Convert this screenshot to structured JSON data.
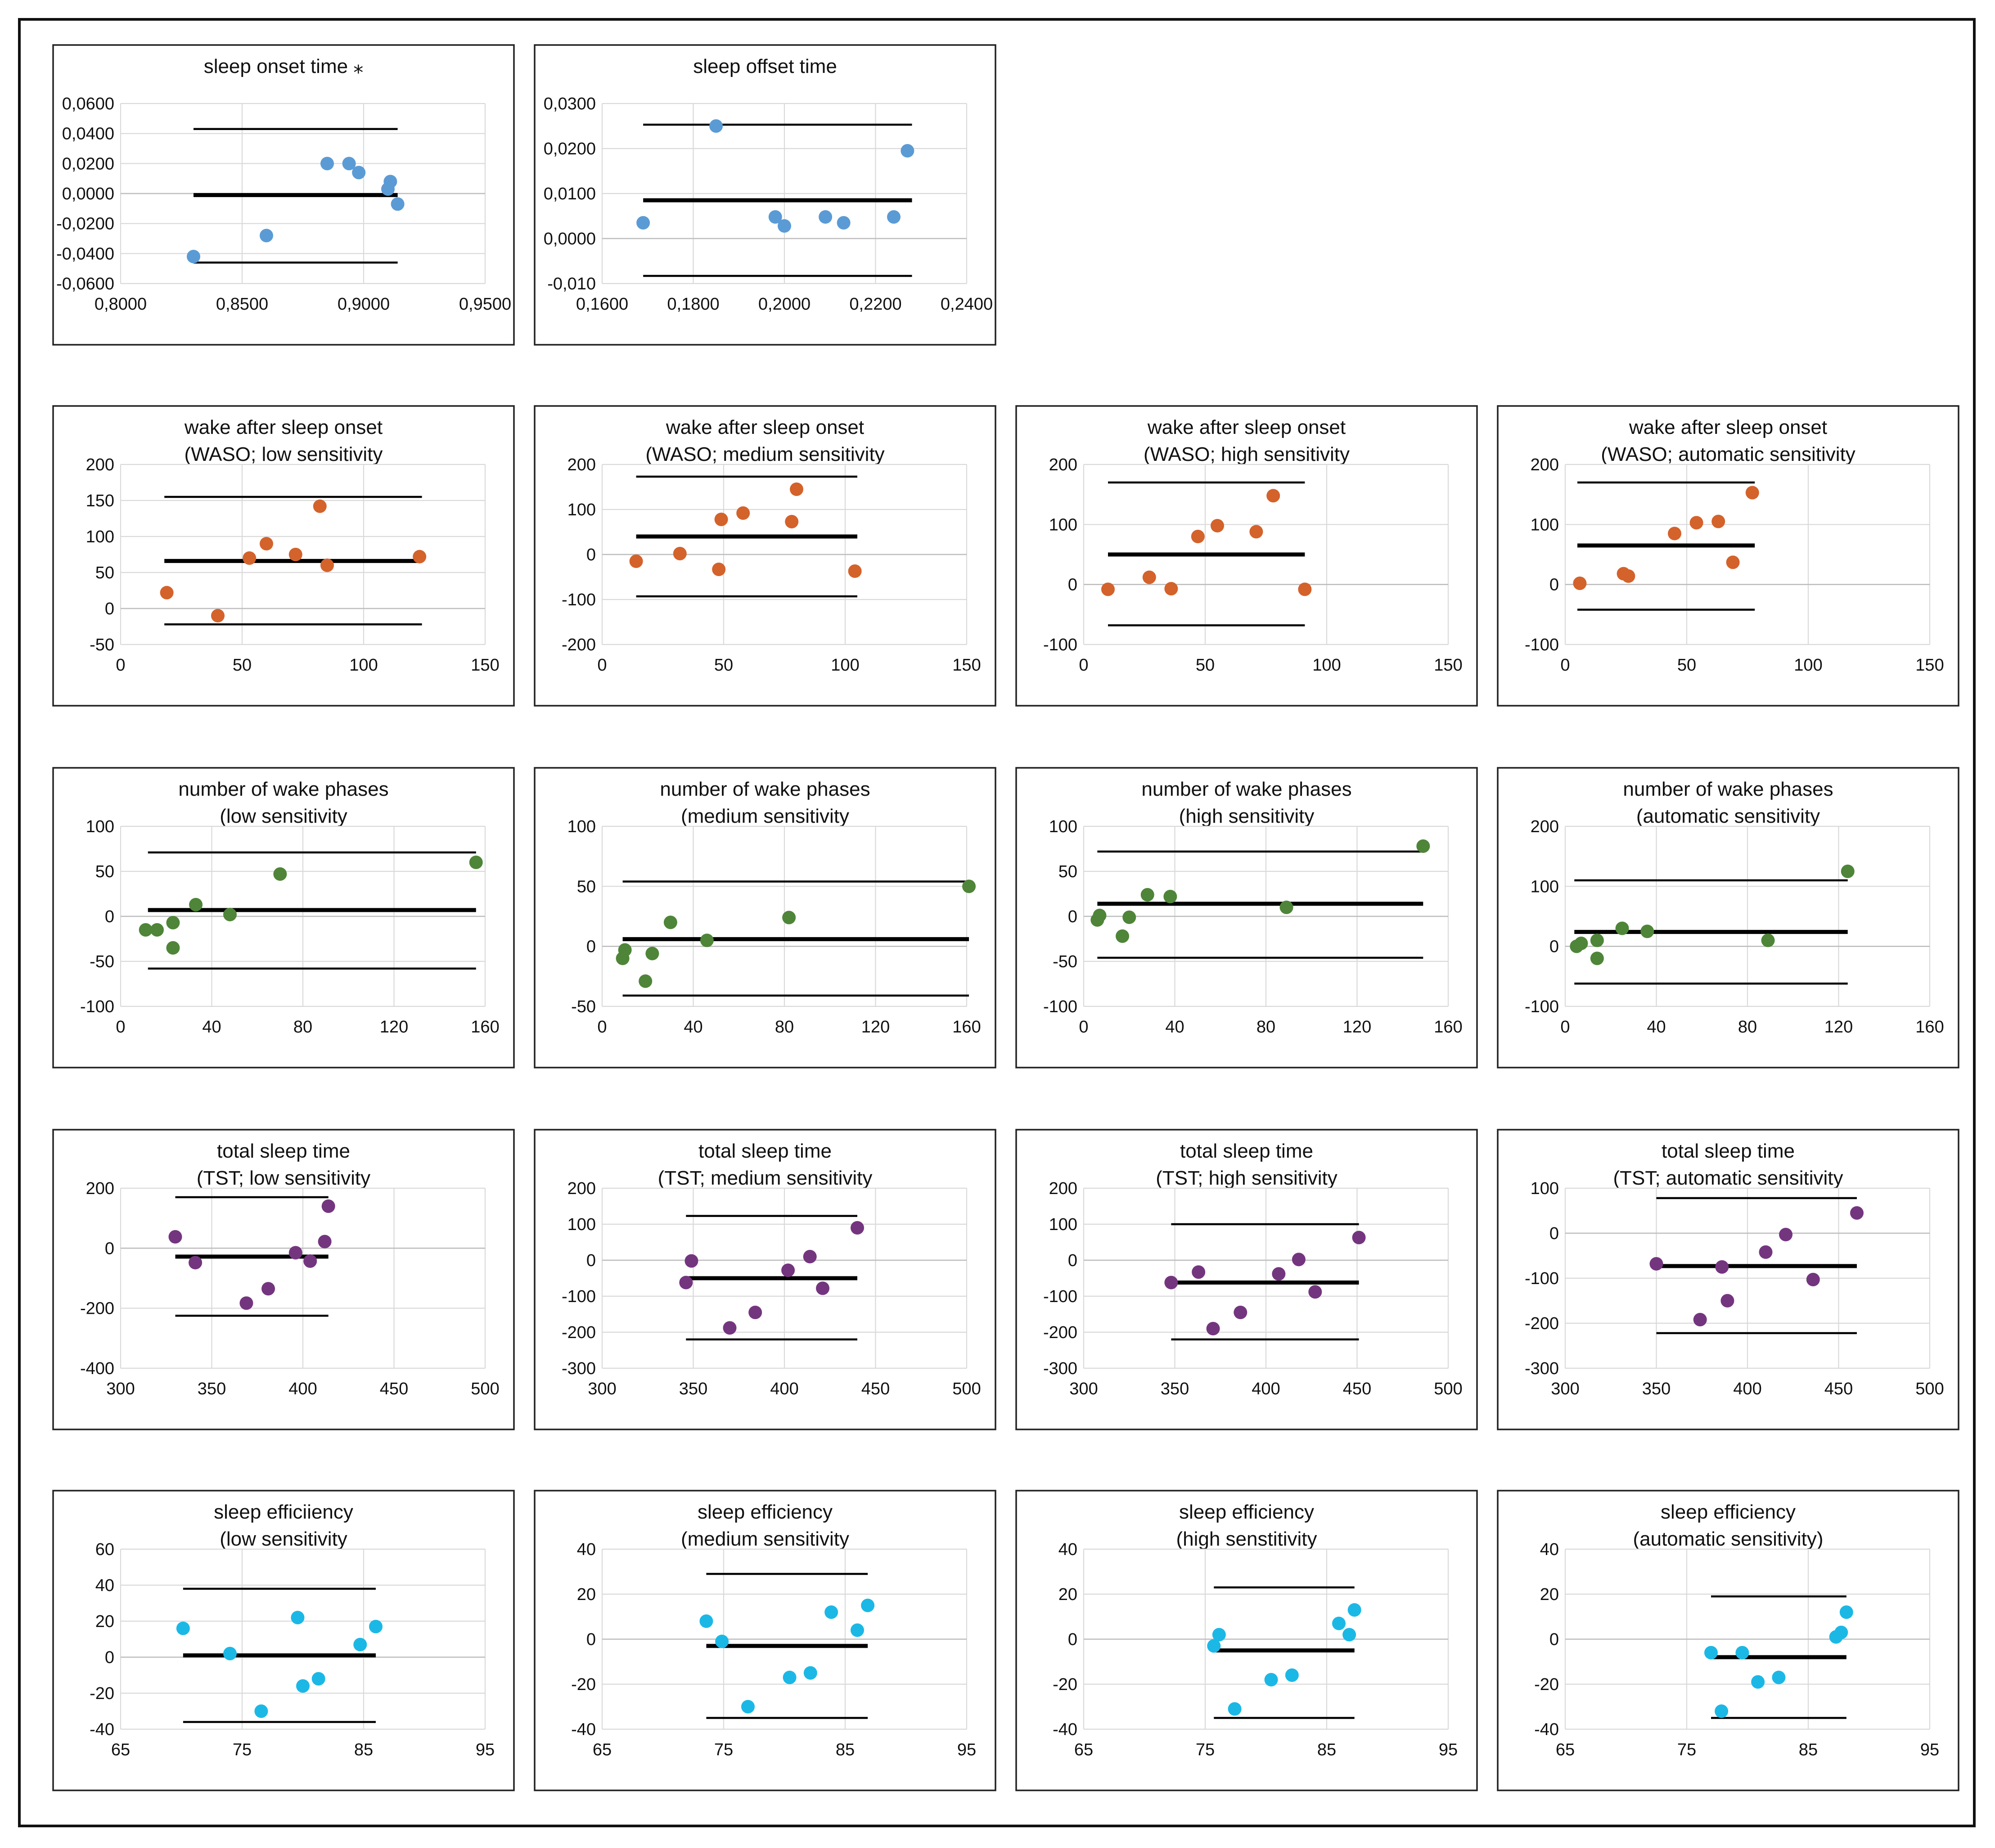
{
  "colors": {
    "blue": "#5b9bd5",
    "orange": "#d4622b",
    "green": "#4e8538",
    "purple": "#74357f",
    "cyan": "#1bb8e6"
  },
  "chart_data": [
    {
      "id": "onset",
      "type": "scatter",
      "title": [
        "sleep onset time ⁎"
      ],
      "color": "blue",
      "xlim": [
        0.8,
        0.95
      ],
      "ylim": [
        -0.06,
        0.06
      ],
      "xticks": [
        "0,8000",
        "0,8500",
        "0,9000",
        "0,9500"
      ],
      "yticks": [
        "-0,0600",
        "-0,0400",
        "-0,0200",
        "0,0000",
        "0,0200",
        "0,0400",
        "0,0600"
      ],
      "points": [
        [
          0.83,
          -0.042
        ],
        [
          0.86,
          -0.028
        ],
        [
          0.885,
          0.02
        ],
        [
          0.894,
          0.02
        ],
        [
          0.898,
          0.014
        ],
        [
          0.91,
          0.003
        ],
        [
          0.911,
          0.008
        ],
        [
          0.914,
          -0.007
        ]
      ],
      "mean": -0.001,
      "loa": [
        0.043,
        -0.046
      ],
      "line_x": [
        0.83,
        0.914
      ]
    },
    {
      "id": "offset",
      "type": "scatter",
      "title": [
        "sleep offset time"
      ],
      "color": "blue",
      "xlim": [
        0.16,
        0.24
      ],
      "ylim": [
        -0.01,
        0.03
      ],
      "xticks": [
        "0,1600",
        "0,1800",
        "0,2000",
        "0,2200",
        "0,2400"
      ],
      "yticks": [
        "-0,010",
        "0,0000",
        "0,0100",
        "0,0200",
        "0,0300"
      ],
      "points": [
        [
          0.169,
          0.0035
        ],
        [
          0.185,
          0.025
        ],
        [
          0.198,
          0.0048
        ],
        [
          0.2,
          0.0028
        ],
        [
          0.209,
          0.0048
        ],
        [
          0.213,
          0.0035
        ],
        [
          0.224,
          0.0048
        ],
        [
          0.227,
          0.0195
        ]
      ],
      "mean": 0.0085,
      "loa": [
        0.0253,
        -0.0083
      ],
      "line_x": [
        0.169,
        0.228
      ]
    },
    {
      "id": "waso-low",
      "type": "scatter",
      "title": [
        "wake after sleep onset",
        "(WASO; low sensitivity"
      ],
      "color": "orange",
      "xlim": [
        0,
        150
      ],
      "ylim": [
        -50,
        200
      ],
      "xticks": [
        "0",
        "50",
        "100",
        "150"
      ],
      "yticks": [
        "-50",
        "0",
        "50",
        "100",
        "150",
        "200"
      ],
      "points": [
        [
          19,
          22
        ],
        [
          40,
          -10
        ],
        [
          53,
          70
        ],
        [
          60,
          90
        ],
        [
          72,
          75
        ],
        [
          82,
          142
        ],
        [
          85,
          60
        ],
        [
          123,
          72
        ]
      ],
      "mean": 66,
      "loa": [
        155,
        -22
      ],
      "line_x": [
        18,
        124
      ]
    },
    {
      "id": "waso-medium",
      "type": "scatter",
      "title": [
        "wake after sleep onset",
        "(WASO; medium sensitivity"
      ],
      "color": "orange",
      "xlim": [
        0,
        150
      ],
      "ylim": [
        -200,
        200
      ],
      "xticks": [
        "0",
        "50",
        "100",
        "150"
      ],
      "yticks": [
        "-200",
        "-100",
        "0",
        "100",
        "200"
      ],
      "points": [
        [
          14,
          -15
        ],
        [
          32,
          2
        ],
        [
          48,
          -33
        ],
        [
          49,
          78
        ],
        [
          58,
          92
        ],
        [
          78,
          73
        ],
        [
          80,
          145
        ],
        [
          104,
          -37
        ]
      ],
      "mean": 40,
      "loa": [
        173,
        -93
      ],
      "line_x": [
        14,
        105
      ]
    },
    {
      "id": "waso-high",
      "type": "scatter",
      "title": [
        "wake after sleep onset",
        "(WASO; high sensitivity"
      ],
      "color": "orange",
      "xlim": [
        0,
        150
      ],
      "ylim": [
        -100,
        200
      ],
      "xticks": [
        "0",
        "50",
        "100",
        "150"
      ],
      "yticks": [
        "-100",
        "0",
        "100",
        "200"
      ],
      "points": [
        [
          10,
          -8
        ],
        [
          27,
          12
        ],
        [
          36,
          -7
        ],
        [
          47,
          80
        ],
        [
          55,
          98
        ],
        [
          71,
          88
        ],
        [
          78,
          148
        ],
        [
          91,
          -8
        ]
      ],
      "mean": 50,
      "loa": [
        170,
        -68
      ],
      "line_x": [
        10,
        91
      ]
    },
    {
      "id": "waso-auto",
      "type": "scatter",
      "title": [
        "wake after sleep onset",
        "(WASO; automatic sensitivity"
      ],
      "color": "orange",
      "xlim": [
        0,
        150
      ],
      "ylim": [
        -100,
        200
      ],
      "xticks": [
        "0",
        "50",
        "100",
        "150"
      ],
      "yticks": [
        "-100",
        "0",
        "100",
        "200"
      ],
      "points": [
        [
          6,
          2
        ],
        [
          24,
          18
        ],
        [
          26,
          14
        ],
        [
          45,
          85
        ],
        [
          54,
          103
        ],
        [
          63,
          105
        ],
        [
          69,
          37
        ],
        [
          77,
          153
        ]
      ],
      "mean": 65,
      "loa": [
        170,
        -42
      ],
      "line_x": [
        5,
        78
      ]
    },
    {
      "id": "wake-low",
      "type": "scatter",
      "title": [
        "number of wake phases",
        "(low sensitivity"
      ],
      "color": "green",
      "xlim": [
        0,
        160
      ],
      "ylim": [
        -100,
        100
      ],
      "xticks": [
        "0",
        "40",
        "80",
        "120",
        "160"
      ],
      "yticks": [
        "-100",
        "-50",
        "0",
        "50",
        "100"
      ],
      "points": [
        [
          11,
          -15
        ],
        [
          16,
          -15
        ],
        [
          23,
          -7
        ],
        [
          23,
          -35
        ],
        [
          33,
          13
        ],
        [
          48,
          2
        ],
        [
          70,
          47
        ],
        [
          156,
          60
        ]
      ],
      "mean": 7,
      "loa": [
        71,
        -58
      ],
      "line_x": [
        12,
        156
      ]
    },
    {
      "id": "wake-medium",
      "type": "scatter",
      "title": [
        "number of wake phases",
        "(medium sensitivity"
      ],
      "color": "green",
      "xlim": [
        0,
        160
      ],
      "ylim": [
        -50,
        100
      ],
      "xticks": [
        "0",
        "40",
        "80",
        "120",
        "160"
      ],
      "yticks": [
        "-50",
        "0",
        "50",
        "100"
      ],
      "points": [
        [
          9,
          -10
        ],
        [
          10,
          -3
        ],
        [
          19,
          -29
        ],
        [
          22,
          -6
        ],
        [
          30,
          20
        ],
        [
          46,
          5
        ],
        [
          82,
          24
        ],
        [
          161,
          50
        ]
      ],
      "mean": 6,
      "loa": [
        54,
        -41
      ],
      "line_x": [
        9,
        161
      ]
    },
    {
      "id": "wake-high",
      "type": "scatter",
      "title": [
        "number of wake phases",
        "(high sensitivity"
      ],
      "color": "green",
      "xlim": [
        0,
        160
      ],
      "ylim": [
        -100,
        100
      ],
      "xticks": [
        "0",
        "40",
        "80",
        "120",
        "160"
      ],
      "yticks": [
        "-100",
        "-50",
        "0",
        "50",
        "100"
      ],
      "points": [
        [
          6,
          -4
        ],
        [
          7,
          1
        ],
        [
          17,
          -22
        ],
        [
          20,
          -1
        ],
        [
          28,
          24
        ],
        [
          38,
          22
        ],
        [
          89,
          10
        ],
        [
          149,
          78
        ]
      ],
      "mean": 14,
      "loa": [
        72,
        -46
      ],
      "line_x": [
        6,
        149
      ]
    },
    {
      "id": "wake-auto",
      "type": "scatter",
      "title": [
        "number of wake phases",
        "(automatic sensitivity"
      ],
      "color": "green",
      "xlim": [
        0,
        160
      ],
      "ylim": [
        -100,
        200
      ],
      "xticks": [
        "0",
        "40",
        "80",
        "120",
        "160"
      ],
      "yticks": [
        "-100",
        "0",
        "100",
        "200"
      ],
      "points": [
        [
          5,
          0
        ],
        [
          7,
          5
        ],
        [
          14,
          10
        ],
        [
          14,
          -20
        ],
        [
          25,
          30
        ],
        [
          36,
          25
        ],
        [
          89,
          10
        ],
        [
          124,
          125
        ]
      ],
      "mean": 24,
      "loa": [
        110,
        -62
      ],
      "line_x": [
        4,
        124
      ]
    },
    {
      "id": "tst-low",
      "type": "scatter",
      "title": [
        "total sleep time",
        "(TST; low sensitivity"
      ],
      "color": "purple",
      "xlim": [
        300,
        500
      ],
      "ylim": [
        -400,
        200
      ],
      "xticks": [
        "300",
        "350",
        "400",
        "450",
        "500"
      ],
      "yticks": [
        "-400",
        "-200",
        "0",
        "200"
      ],
      "points": [
        [
          330,
          38
        ],
        [
          341,
          -48
        ],
        [
          369,
          -183
        ],
        [
          381,
          -135
        ],
        [
          396,
          -15
        ],
        [
          404,
          -43
        ],
        [
          412,
          22
        ],
        [
          414,
          140
        ]
      ],
      "mean": -28,
      "loa": [
        170,
        -225
      ],
      "line_x": [
        330,
        414
      ]
    },
    {
      "id": "tst-medium",
      "type": "scatter",
      "title": [
        "total sleep time",
        "(TST; medium sensitivity"
      ],
      "color": "purple",
      "xlim": [
        300,
        500
      ],
      "ylim": [
        -300,
        200
      ],
      "xticks": [
        "300",
        "350",
        "400",
        "450",
        "500"
      ],
      "yticks": [
        "-300",
        "-200",
        "-100",
        "0",
        "100",
        "200"
      ],
      "points": [
        [
          346,
          -62
        ],
        [
          349,
          -2
        ],
        [
          370,
          -188
        ],
        [
          384,
          -145
        ],
        [
          402,
          -28
        ],
        [
          414,
          10
        ],
        [
          421,
          -78
        ],
        [
          440,
          90
        ]
      ],
      "mean": -50,
      "loa": [
        123,
        -220
      ],
      "line_x": [
        346,
        440
      ]
    },
    {
      "id": "tst-high",
      "type": "scatter",
      "title": [
        "total sleep time",
        "(TST; high sensitivity"
      ],
      "color": "purple",
      "xlim": [
        300,
        500
      ],
      "ylim": [
        -300,
        200
      ],
      "xticks": [
        "300",
        "350",
        "400",
        "450",
        "500"
      ],
      "yticks": [
        "-300",
        "-200",
        "-100",
        "0",
        "100",
        "200"
      ],
      "points": [
        [
          348,
          -62
        ],
        [
          363,
          -33
        ],
        [
          371,
          -190
        ],
        [
          386,
          -145
        ],
        [
          407,
          -38
        ],
        [
          418,
          2
        ],
        [
          427,
          -88
        ],
        [
          451,
          63
        ]
      ],
      "mean": -62,
      "loa": [
        100,
        -220
      ],
      "line_x": [
        348,
        451
      ]
    },
    {
      "id": "tst-auto",
      "type": "scatter",
      "title": [
        "total sleep time",
        "(TST; automatic sensitivity"
      ],
      "color": "purple",
      "xlim": [
        300,
        500
      ],
      "ylim": [
        -300,
        100
      ],
      "xticks": [
        "300",
        "350",
        "400",
        "450",
        "500"
      ],
      "yticks": [
        "-300",
        "-200",
        "-100",
        "0",
        "100"
      ],
      "points": [
        [
          350,
          -68
        ],
        [
          374,
          -192
        ],
        [
          386,
          -75
        ],
        [
          389,
          -150
        ],
        [
          410,
          -42
        ],
        [
          421,
          -3
        ],
        [
          436,
          -103
        ],
        [
          460,
          45
        ]
      ],
      "mean": -73,
      "loa": [
        78,
        -222
      ],
      "line_x": [
        350,
        460
      ]
    },
    {
      "id": "se-low",
      "type": "scatter",
      "title": [
        "sleep efficiiency",
        "(low sensitivity"
      ],
      "color": "cyan",
      "xlim": [
        65,
        100
      ],
      "ylim": [
        -40,
        60
      ],
      "xticks": [
        "65",
        "75",
        "85",
        "95"
      ],
      "yticks": [
        "-40",
        "-20",
        "0",
        "20",
        "40",
        "60"
      ],
      "points": [
        [
          71,
          16
        ],
        [
          75.5,
          2
        ],
        [
          78.5,
          -30
        ],
        [
          82,
          22
        ],
        [
          82.5,
          -16
        ],
        [
          84,
          -12
        ],
        [
          88,
          7
        ],
        [
          89.5,
          17
        ]
      ],
      "mean": 1,
      "loa": [
        38,
        -36
      ],
      "line_x": [
        71,
        89.5
      ]
    },
    {
      "id": "se-medium",
      "type": "scatter",
      "title": [
        "sleep efficiency",
        "(medium sensitivity"
      ],
      "color": "cyan",
      "xlim": [
        65,
        100
      ],
      "ylim": [
        -40,
        40
      ],
      "xticks": [
        "65",
        "75",
        "85",
        "95"
      ],
      "yticks": [
        "-40",
        "-20",
        "0",
        "20",
        "40"
      ],
      "points": [
        [
          75,
          8
        ],
        [
          76.5,
          -1
        ],
        [
          79,
          -30
        ],
        [
          83,
          -17
        ],
        [
          85,
          -15
        ],
        [
          87,
          12
        ],
        [
          89.5,
          4
        ],
        [
          90.5,
          15
        ]
      ],
      "mean": -3,
      "loa": [
        29,
        -35
      ],
      "line_x": [
        75,
        90.5
      ]
    },
    {
      "id": "se-high",
      "type": "scatter",
      "title": [
        "sleep efficiency",
        "(high senstitivity"
      ],
      "color": "cyan",
      "xlim": [
        65,
        100
      ],
      "ylim": [
        -40,
        40
      ],
      "xticks": [
        "65",
        "75",
        "85",
        "95"
      ],
      "yticks": [
        "-40",
        "-20",
        "0",
        "20",
        "40"
      ],
      "points": [
        [
          77.5,
          -3
        ],
        [
          78,
          2
        ],
        [
          79.5,
          -31
        ],
        [
          83,
          -18
        ],
        [
          85,
          -16
        ],
        [
          89.5,
          7
        ],
        [
          90.5,
          2
        ],
        [
          91,
          13
        ]
      ],
      "mean": -5,
      "loa": [
        23,
        -35
      ],
      "line_x": [
        77.5,
        91
      ]
    },
    {
      "id": "se-auto",
      "type": "scatter",
      "title": [
        "sleep efficiency",
        "(automatic sensitivity)"
      ],
      "color": "cyan",
      "xlim": [
        65,
        100
      ],
      "ylim": [
        -40,
        40
      ],
      "xticks": [
        "65",
        "75",
        "85",
        "95"
      ],
      "yticks": [
        "-40",
        "-20",
        "0",
        "20",
        "40"
      ],
      "points": [
        [
          79,
          -6
        ],
        [
          80,
          -32
        ],
        [
          82,
          -6
        ],
        [
          83.5,
          -19
        ],
        [
          85.5,
          -17
        ],
        [
          91,
          1
        ],
        [
          91.5,
          3
        ],
        [
          92,
          12
        ]
      ],
      "mean": -8,
      "loa": [
        19,
        -35
      ],
      "line_x": [
        79,
        92
      ]
    }
  ]
}
